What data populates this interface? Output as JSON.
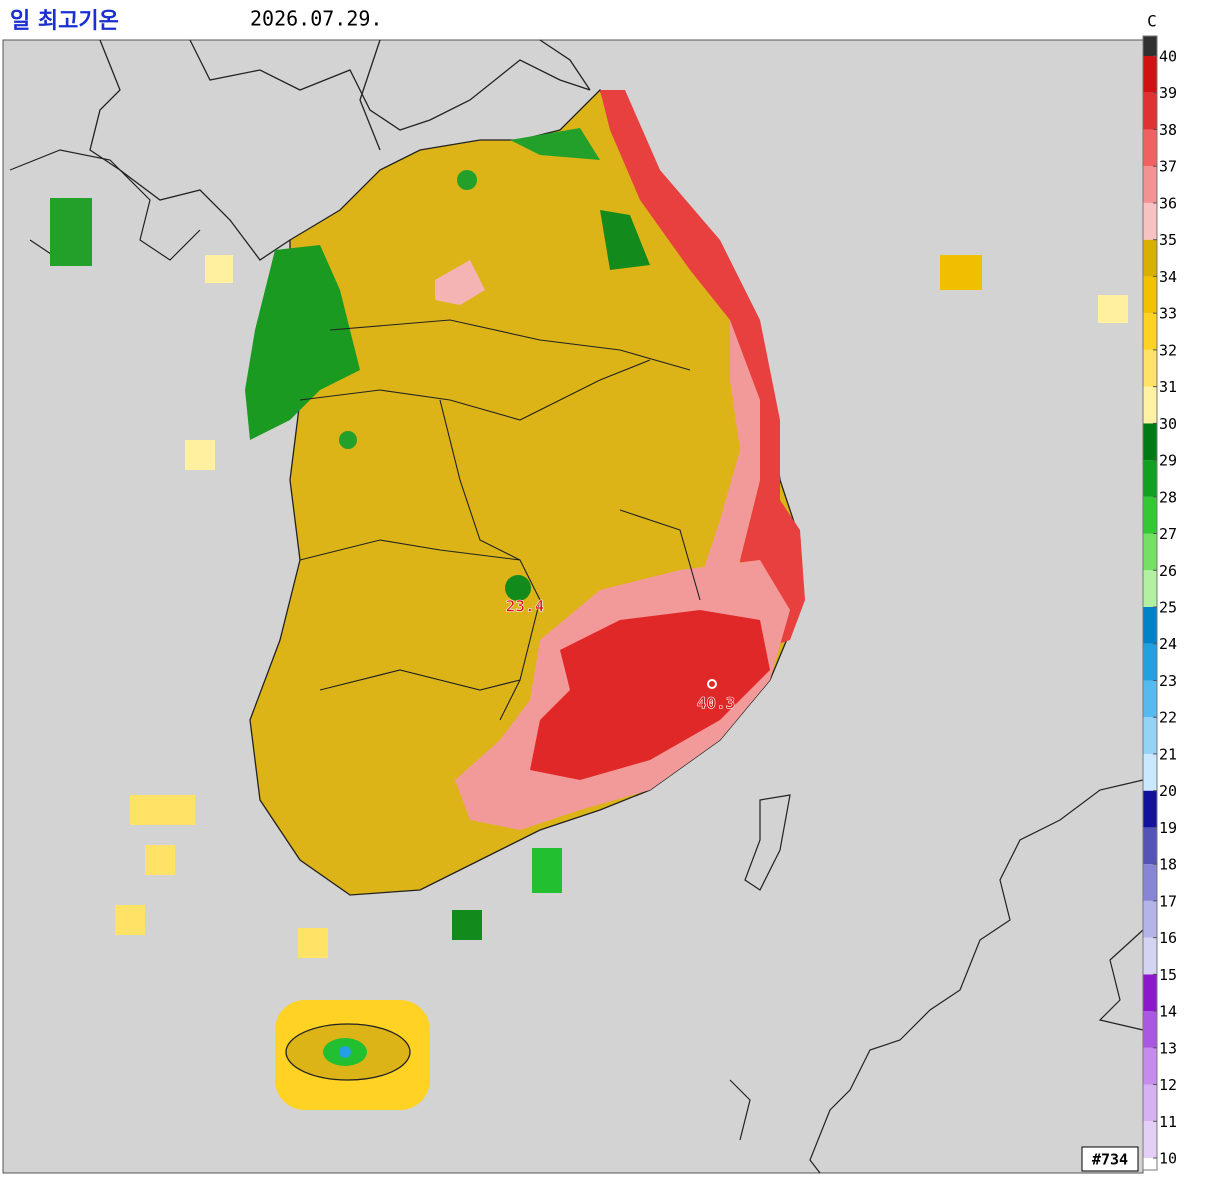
{
  "header": {
    "title": "일 최고기온",
    "date": "2026.07.29."
  },
  "legend": {
    "unit": "C",
    "ticks": [
      10,
      11,
      12,
      13,
      14,
      15,
      16,
      17,
      18,
      19,
      20,
      21,
      22,
      23,
      24,
      25,
      26,
      27,
      28,
      29,
      30,
      31,
      32,
      33,
      34,
      35,
      36,
      37,
      38,
      39,
      40
    ],
    "colors": [
      "#e4d0f6",
      "#d6b2f2",
      "#c58cec",
      "#aa58e2",
      "#8c18cc",
      "#d4d4f2",
      "#b4b4e8",
      "#8686d4",
      "#5454b8",
      "#12129c",
      "#cae8ff",
      "#94d2f6",
      "#56baf0",
      "#22a0e0",
      "#0082c8",
      "#b2f0a2",
      "#74e064",
      "#34c834",
      "#12a022",
      "#007a12",
      "#fff2a4",
      "#ffe266",
      "#ffd224",
      "#f0c200",
      "#d8b000",
      "#f8c2c2",
      "#f29292",
      "#f06262",
      "#e03232",
      "#d01212",
      "#303030"
    ]
  },
  "annotations": [
    {
      "label": "23.4"
    },
    {
      "label": "40.3"
    }
  ],
  "footer": {
    "id": "#734"
  }
}
